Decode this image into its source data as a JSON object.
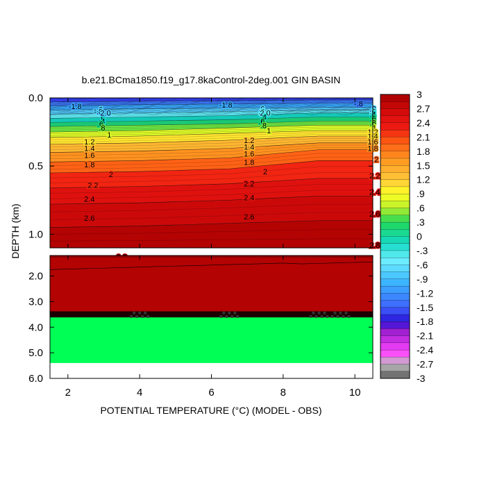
{
  "chart_data": {
    "type": "heatmap",
    "title": "b.e21.BCma1850.f19_g17.8kaControl-2deg.001 GIN BASIN",
    "xlabel": "POTENTIAL TEMPERATURE (°C) (MODEL - OBS)",
    "ylabel": "DEPTH (km)",
    "xlim": [
      1.5,
      10.5
    ],
    "x_ticks": [
      "2",
      "4",
      "6",
      "8",
      "10"
    ],
    "x_tick_values": [
      2,
      4,
      6,
      8,
      10
    ],
    "upper_panel": {
      "ylim": [
        0.0,
        1.1
      ],
      "y_ticks": [
        "0.0",
        "0.5",
        "1.0"
      ],
      "y_tick_values": [
        0.0,
        0.5,
        1.0
      ]
    },
    "lower_panel": {
      "ylim": [
        1.2,
        6.0
      ],
      "y_ticks": [
        "2.0",
        "3.0",
        "4.0",
        "5.0",
        "6.0"
      ],
      "y_tick_values": [
        2.0,
        3.0,
        4.0,
        5.0,
        6.0
      ]
    },
    "profile_x": [
      1.5,
      4.0,
      6.5,
      9.0,
      10.5
    ],
    "contour_labels": [
      {
        "text": "-1.8",
        "x": 2.2,
        "y": 0.06
      },
      {
        "text": "-1.8",
        "x": 6.4,
        "y": 0.05
      },
      {
        "text": "-.8",
        "x": 10.1,
        "y": 0.04
      },
      {
        "text": "-.6",
        "x": 2.85,
        "y": 0.085
      },
      {
        "text": "-.8",
        "x": 2.85,
        "y": 0.1
      },
      {
        "text": ".6",
        "x": 2.95,
        "y": 0.15
      },
      {
        "text": "2.0",
        "x": 3.05,
        "y": 0.11
      },
      {
        "text": ".4",
        "x": 2.95,
        "y": 0.17
      },
      {
        "text": ".6",
        "x": 2.9,
        "y": 0.19
      },
      {
        "text": ".8",
        "x": 2.95,
        "y": 0.22
      },
      {
        "text": "1",
        "x": 3.15,
        "y": 0.27
      },
      {
        "text": "1.2",
        "x": 2.6,
        "y": 0.32
      },
      {
        "text": "1.4",
        "x": 2.6,
        "y": 0.37
      },
      {
        "text": "1.6",
        "x": 2.6,
        "y": 0.42
      },
      {
        "text": "1.8",
        "x": 2.6,
        "y": 0.49
      },
      {
        "text": "2",
        "x": 3.2,
        "y": 0.56
      },
      {
        "text": "2.2",
        "x": 2.7,
        "y": 0.64
      },
      {
        "text": "2.4",
        "x": 2.6,
        "y": 0.74
      },
      {
        "text": "2.6",
        "x": 2.6,
        "y": 0.88
      },
      {
        "text": ".6",
        "x": 7.4,
        "y": 0.08
      },
      {
        "text": ".8",
        "x": 7.4,
        "y": 0.1
      },
      {
        "text": "2.0",
        "x": 7.5,
        "y": 0.11
      },
      {
        "text": ".4",
        "x": 7.45,
        "y": 0.14
      },
      {
        "text": ".6",
        "x": 7.4,
        "y": 0.17
      },
      {
        "text": ".8",
        "x": 7.45,
        "y": 0.2
      },
      {
        "text": "1",
        "x": 7.6,
        "y": 0.24
      },
      {
        "text": "1.2",
        "x": 7.05,
        "y": 0.31
      },
      {
        "text": "1.4",
        "x": 7.05,
        "y": 0.36
      },
      {
        "text": "1.6",
        "x": 7.05,
        "y": 0.41
      },
      {
        "text": "1.8",
        "x": 7.05,
        "y": 0.47
      },
      {
        "text": "2",
        "x": 7.5,
        "y": 0.54
      },
      {
        "text": "2.2",
        "x": 7.05,
        "y": 0.63
      },
      {
        "text": "2.4",
        "x": 7.05,
        "y": 0.73
      },
      {
        "text": "2.6",
        "x": 7.05,
        "y": 0.87
      },
      {
        "text": ".8",
        "x": 10.5,
        "y": 0.08
      },
      {
        "text": ".6",
        "x": 10.5,
        "y": 0.1
      },
      {
        "text": ".4",
        "x": 10.5,
        "y": 0.12
      },
      {
        "text": ".6",
        "x": 10.5,
        "y": 0.15
      },
      {
        "text": ".8",
        "x": 10.5,
        "y": 0.18
      },
      {
        "text": "1",
        "x": 10.55,
        "y": 0.22
      },
      {
        "text": "1.2",
        "x": 10.5,
        "y": 0.25
      },
      {
        "text": "1.4",
        "x": 10.5,
        "y": 0.28
      },
      {
        "text": "1.6",
        "x": 10.5,
        "y": 0.32
      },
      {
        "text": "1.8",
        "x": 10.5,
        "y": 0.37
      },
      {
        "text": "2",
        "x": 10.6,
        "y": 0.45
      },
      {
        "text": "2.2",
        "x": 10.55,
        "y": 0.57
      },
      {
        "text": "2.4",
        "x": 10.55,
        "y": 0.69
      },
      {
        "text": "2.6",
        "x": 10.55,
        "y": 0.85
      },
      {
        "text": "2.8",
        "x": 10.55,
        "y": 1.08
      },
      {
        "text": "2.8",
        "x": 3.5,
        "y": 1.25
      }
    ],
    "deep_values": {
      "top_layer": 2.9,
      "lower_layer": 0.1,
      "transition_depth": 3.5,
      "bottom_depth": 5.4
    },
    "colorbar": {
      "min": -3,
      "max": 3,
      "step": 0.15,
      "labels": [
        "3",
        "2.7",
        "2.4",
        "2.1",
        "1.8",
        "1.5",
        "1.2",
        ".9",
        ".6",
        ".3",
        "0",
        "-.3",
        "-.6",
        "-.9",
        "-1.2",
        "-1.5",
        "-1.8",
        "-2.1",
        "-2.4",
        "-2.7",
        "-3"
      ],
      "label_values": [
        3,
        2.7,
        2.4,
        2.1,
        1.8,
        1.5,
        1.2,
        0.9,
        0.6,
        0.3,
        0,
        -0.3,
        -0.6,
        -0.9,
        -1.2,
        -1.5,
        -1.8,
        -2.1,
        -2.4,
        -2.7,
        -3
      ]
    }
  }
}
